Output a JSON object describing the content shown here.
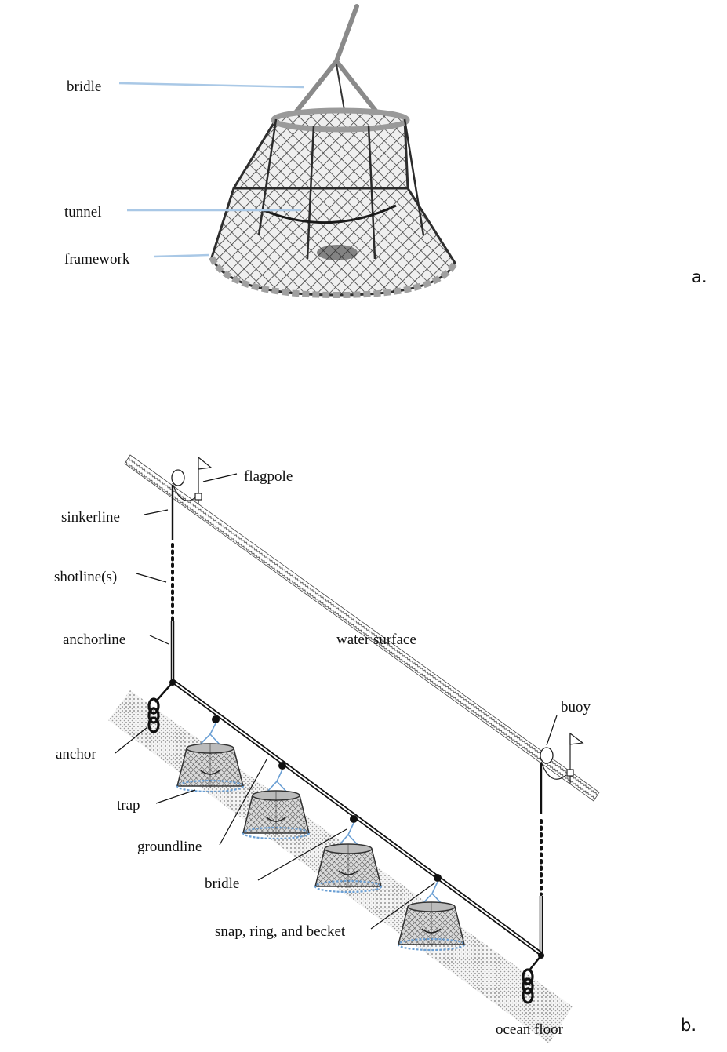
{
  "panel_a": {
    "letter": "a.",
    "labels": {
      "bridle": "bridle",
      "tunnel": "tunnel",
      "framework": "framework"
    },
    "leader_color": "#a9c8e6",
    "net_color": "#3a3a3a"
  },
  "panel_b": {
    "letter": "b.",
    "labels": {
      "flagpole": "flagpole",
      "sinkerline": "sinkerline",
      "shotlines": "shotline(s)",
      "anchorline": "anchorline",
      "water_surface": "water surface",
      "buoy": "buoy",
      "anchor": "anchor",
      "trap": "trap",
      "groundline": "groundline",
      "bridle": "bridle",
      "snap": "snap, ring, and becket",
      "ocean_floor": "ocean floor"
    },
    "bridle_color": "#6a9fd4"
  }
}
